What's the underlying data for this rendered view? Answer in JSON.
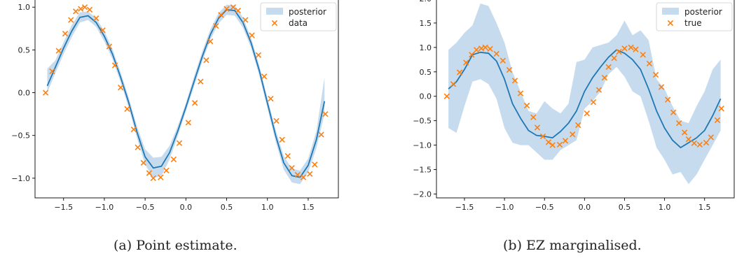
{
  "captions": [
    "(a) Point estimate.",
    "(b) EZ marginalised."
  ],
  "colors": {
    "band": "#c6dcee",
    "line": "#1f77b4",
    "marker": "#ff7f0e"
  },
  "chart_data": [
    {
      "type": "line",
      "title": "",
      "xlabel": "",
      "ylabel": "",
      "xlim": [
        -1.85,
        1.87
      ],
      "ylim": [
        -1.23,
        1.1
      ],
      "xticks": [
        -1.5,
        -1.0,
        -0.5,
        0.0,
        0.5,
        1.0,
        1.5
      ],
      "xtick_labels": [
        "−1.5",
        "−1.0",
        "−0.5",
        "0.0",
        "0.5",
        "1.0",
        "1.5"
      ],
      "yticks": [
        -1.0,
        -0.5,
        0.0,
        0.5,
        1.0
      ],
      "ytick_labels": [
        "−1.0",
        "−0.5",
        "0.0",
        "0.5",
        "1.0"
      ],
      "legend": {
        "position": "top-right",
        "entries": [
          "posterior",
          "data"
        ]
      },
      "grid": false,
      "series": [
        {
          "name": "posterior",
          "kind": "mean-line-with-band",
          "x": [
            -1.7,
            -1.6,
            -1.5,
            -1.4,
            -1.3,
            -1.2,
            -1.1,
            -1.0,
            -0.9,
            -0.8,
            -0.7,
            -0.6,
            -0.5,
            -0.4,
            -0.3,
            -0.2,
            -0.1,
            0.0,
            0.1,
            0.2,
            0.3,
            0.4,
            0.5,
            0.6,
            0.7,
            0.8,
            0.9,
            1.0,
            1.1,
            1.2,
            1.3,
            1.4,
            1.5,
            1.6,
            1.7
          ],
          "mean": [
            0.08,
            0.3,
            0.52,
            0.72,
            0.88,
            0.9,
            0.82,
            0.66,
            0.45,
            0.18,
            -0.12,
            -0.46,
            -0.75,
            -0.88,
            -0.86,
            -0.7,
            -0.45,
            -0.17,
            0.13,
            0.42,
            0.68,
            0.87,
            0.97,
            0.96,
            0.82,
            0.58,
            0.26,
            -0.12,
            -0.5,
            -0.82,
            -0.97,
            -0.99,
            -0.85,
            -0.55,
            -0.1
          ],
          "lower": [
            0.0,
            0.23,
            0.45,
            0.65,
            0.82,
            0.85,
            0.77,
            0.6,
            0.39,
            0.12,
            -0.18,
            -0.53,
            -0.84,
            -1.0,
            -0.97,
            -0.78,
            -0.51,
            -0.22,
            0.07,
            0.36,
            0.62,
            0.81,
            0.91,
            0.9,
            0.76,
            0.52,
            0.2,
            -0.18,
            -0.57,
            -0.9,
            -1.05,
            -1.07,
            -0.93,
            -0.65,
            -0.25
          ],
          "upper": [
            0.28,
            0.38,
            0.59,
            0.79,
            0.94,
            0.95,
            0.87,
            0.72,
            0.51,
            0.24,
            -0.06,
            -0.39,
            -0.66,
            -0.76,
            -0.75,
            -0.62,
            -0.39,
            -0.12,
            0.19,
            0.48,
            0.74,
            0.93,
            1.03,
            1.02,
            0.88,
            0.64,
            0.32,
            -0.06,
            -0.43,
            -0.74,
            -0.89,
            -0.91,
            -0.77,
            -0.45,
            0.18
          ]
        },
        {
          "name": "data",
          "kind": "scatter-x",
          "x": [
            -1.72,
            -1.64,
            -1.56,
            -1.48,
            -1.41,
            -1.35,
            -1.29,
            -1.24,
            -1.18,
            -1.1,
            -1.02,
            -0.94,
            -0.87,
            -0.8,
            -0.72,
            -0.64,
            -0.59,
            -0.52,
            -0.45,
            -0.4,
            -0.31,
            -0.24,
            -0.15,
            -0.08,
            0.03,
            0.11,
            0.18,
            0.25,
            0.3,
            0.37,
            0.43,
            0.5,
            0.58,
            0.64,
            0.73,
            0.81,
            0.89,
            0.96,
            1.04,
            1.11,
            1.18,
            1.25,
            1.3,
            1.37,
            1.44,
            1.52,
            1.58,
            1.66,
            1.71
          ],
          "y": [
            0.0,
            0.25,
            0.49,
            0.69,
            0.85,
            0.95,
            0.98,
            1.0,
            0.97,
            0.87,
            0.73,
            0.54,
            0.32,
            0.06,
            -0.19,
            -0.43,
            -0.64,
            -0.82,
            -0.94,
            -1.0,
            -0.99,
            -0.91,
            -0.78,
            -0.59,
            -0.35,
            -0.12,
            0.13,
            0.38,
            0.6,
            0.78,
            0.91,
            0.98,
            1.0,
            0.96,
            0.85,
            0.67,
            0.44,
            0.19,
            -0.07,
            -0.33,
            -0.55,
            -0.74,
            -0.88,
            -0.96,
            -0.99,
            -0.95,
            -0.84,
            -0.49,
            -0.25
          ]
        }
      ]
    },
    {
      "type": "line",
      "title": "",
      "xlabel": "",
      "ylabel": "",
      "xlim": [
        -1.85,
        1.87
      ],
      "ylim": [
        -2.08,
        2.0
      ],
      "xticks": [
        -1.5,
        -1.0,
        -0.5,
        0.0,
        0.5,
        1.0,
        1.5
      ],
      "xtick_labels": [
        "−1.5",
        "−1.0",
        "−0.5",
        "0.0",
        "0.5",
        "1.0",
        "1.5"
      ],
      "yticks": [
        -2.0,
        -1.5,
        -1.0,
        -0.5,
        0.0,
        0.5,
        1.0,
        1.5,
        2.0
      ],
      "ytick_labels": [
        "−2.0",
        "−1.5",
        "−1.0",
        "−0.5",
        "0.0",
        "0.5",
        "1.0",
        "1.5",
        "2.0"
      ],
      "legend": {
        "position": "top-right",
        "entries": [
          "posterior",
          "true"
        ]
      },
      "grid": false,
      "series": [
        {
          "name": "posterior",
          "kind": "mean-line-with-band",
          "x": [
            -1.7,
            -1.6,
            -1.5,
            -1.4,
            -1.3,
            -1.2,
            -1.1,
            -1.0,
            -0.9,
            -0.8,
            -0.7,
            -0.6,
            -0.5,
            -0.4,
            -0.3,
            -0.2,
            -0.1,
            0.0,
            0.1,
            0.2,
            0.3,
            0.4,
            0.5,
            0.6,
            0.7,
            0.8,
            0.9,
            1.0,
            1.1,
            1.2,
            1.3,
            1.4,
            1.5,
            1.6,
            1.7
          ],
          "mean": [
            0.15,
            0.3,
            0.55,
            0.85,
            0.9,
            0.88,
            0.72,
            0.35,
            -0.15,
            -0.45,
            -0.7,
            -0.8,
            -0.82,
            -0.85,
            -0.72,
            -0.55,
            -0.3,
            0.1,
            0.38,
            0.6,
            0.8,
            0.95,
            0.88,
            0.75,
            0.55,
            0.15,
            -0.3,
            -0.65,
            -0.9,
            -1.05,
            -0.95,
            -0.85,
            -0.7,
            -0.4,
            -0.05
          ],
          "lower": [
            -0.65,
            -0.75,
            -0.2,
            0.3,
            0.35,
            0.25,
            -0.05,
            -0.65,
            -0.95,
            -1.0,
            -1.0,
            -1.15,
            -1.3,
            -1.3,
            -1.1,
            -1.0,
            -0.9,
            -0.25,
            -0.1,
            0.1,
            0.45,
            0.6,
            0.4,
            0.1,
            0.0,
            -0.5,
            -1.05,
            -1.3,
            -1.6,
            -1.55,
            -1.8,
            -1.6,
            -1.3,
            -1.0,
            -0.7
          ],
          "upper": [
            0.95,
            1.1,
            1.3,
            1.45,
            1.9,
            1.85,
            1.5,
            1.1,
            0.5,
            0.1,
            -0.3,
            -0.35,
            -0.1,
            -0.25,
            -0.35,
            -0.15,
            0.7,
            0.75,
            1.0,
            1.05,
            1.1,
            1.25,
            1.55,
            1.25,
            1.35,
            1.15,
            0.35,
            0.15,
            -0.2,
            -0.5,
            -0.55,
            -0.2,
            0.1,
            0.55,
            0.75
          ]
        },
        {
          "name": "true",
          "kind": "scatter-x",
          "x": [
            -1.72,
            -1.64,
            -1.56,
            -1.48,
            -1.41,
            -1.35,
            -1.29,
            -1.24,
            -1.18,
            -1.1,
            -1.02,
            -0.94,
            -0.87,
            -0.8,
            -0.72,
            -0.64,
            -0.59,
            -0.52,
            -0.45,
            -0.4,
            -0.31,
            -0.24,
            -0.15,
            -0.08,
            0.03,
            0.11,
            0.18,
            0.25,
            0.3,
            0.37,
            0.43,
            0.5,
            0.58,
            0.64,
            0.73,
            0.81,
            0.89,
            0.96,
            1.04,
            1.11,
            1.18,
            1.25,
            1.3,
            1.37,
            1.44,
            1.52,
            1.58,
            1.66,
            1.71
          ],
          "y": [
            0.0,
            0.25,
            0.49,
            0.69,
            0.85,
            0.95,
            0.98,
            1.0,
            0.97,
            0.87,
            0.73,
            0.54,
            0.32,
            0.06,
            -0.19,
            -0.43,
            -0.64,
            -0.82,
            -0.94,
            -1.0,
            -0.99,
            -0.91,
            -0.78,
            -0.59,
            -0.35,
            -0.12,
            0.13,
            0.38,
            0.6,
            0.78,
            0.91,
            0.98,
            1.0,
            0.96,
            0.85,
            0.67,
            0.44,
            0.19,
            -0.07,
            -0.33,
            -0.55,
            -0.74,
            -0.88,
            -0.96,
            -0.99,
            -0.95,
            -0.84,
            -0.49,
            -0.25
          ]
        }
      ]
    }
  ]
}
